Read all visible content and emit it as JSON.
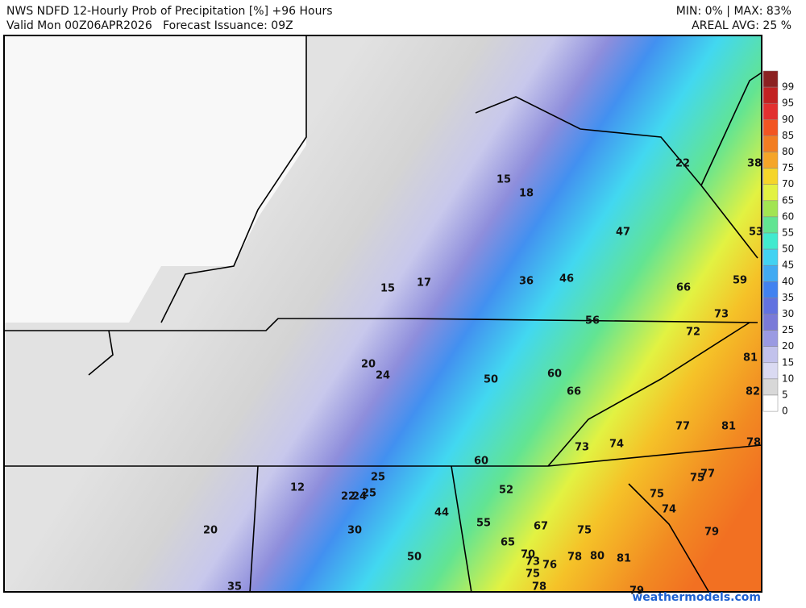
{
  "header": {
    "title": "NWS NDFD 12-Hourly Prob of Precipitation [%] +96 Hours",
    "valid": "Valid Mon 00Z06APR2026   Forecast Issuance: 09Z",
    "minmax": "MIN: 0% | MAX: 83%",
    "areal_avg": "AREAL AVG: 25 %"
  },
  "legend": [
    {
      "label": "99",
      "color": "#8b2222"
    },
    {
      "label": "95",
      "color": "#c22222"
    },
    {
      "label": "90",
      "color": "#e23030"
    },
    {
      "label": "85",
      "color": "#f25522"
    },
    {
      "label": "80",
      "color": "#f27d22"
    },
    {
      "label": "75",
      "color": "#f5a528"
    },
    {
      "label": "70",
      "color": "#f5d52a"
    },
    {
      "label": "65",
      "color": "#e2f242"
    },
    {
      "label": "60",
      "color": "#a2e452"
    },
    {
      "label": "55",
      "color": "#62e492"
    },
    {
      "label": "50",
      "color": "#42eacf"
    },
    {
      "label": "45",
      "color": "#42d2f2"
    },
    {
      "label": "40",
      "color": "#42aaf2"
    },
    {
      "label": "35",
      "color": "#4282f0"
    },
    {
      "label": "30",
      "color": "#6272e0"
    },
    {
      "label": "25",
      "color": "#7a7ad8"
    },
    {
      "label": "20",
      "color": "#9a9ae2"
    },
    {
      "label": "15",
      "color": "#c2c2ec"
    },
    {
      "label": "10",
      "color": "#dadaf2"
    },
    {
      "label": "5",
      "color": "#d8d8d8"
    },
    {
      "label": "0",
      "color": "#ffffff"
    }
  ],
  "map_labels": [
    "15",
    "18",
    "22",
    "38",
    "47",
    "53",
    "15",
    "17",
    "36",
    "46",
    "66",
    "59",
    "73",
    "56",
    "72",
    "81",
    "20",
    "24",
    "50",
    "60",
    "66",
    "82",
    "77",
    "81",
    "78",
    "73",
    "74",
    "60",
    "25",
    "75",
    "77",
    "12",
    "22",
    "24",
    "25",
    "52",
    "75",
    "44",
    "74",
    "55",
    "67",
    "75",
    "20",
    "30",
    "79",
    "65",
    "70",
    "78",
    "80",
    "81",
    "50",
    "73",
    "76",
    "75",
    "78",
    "35",
    "79"
  ],
  "watermark": "weathermodels.com"
}
